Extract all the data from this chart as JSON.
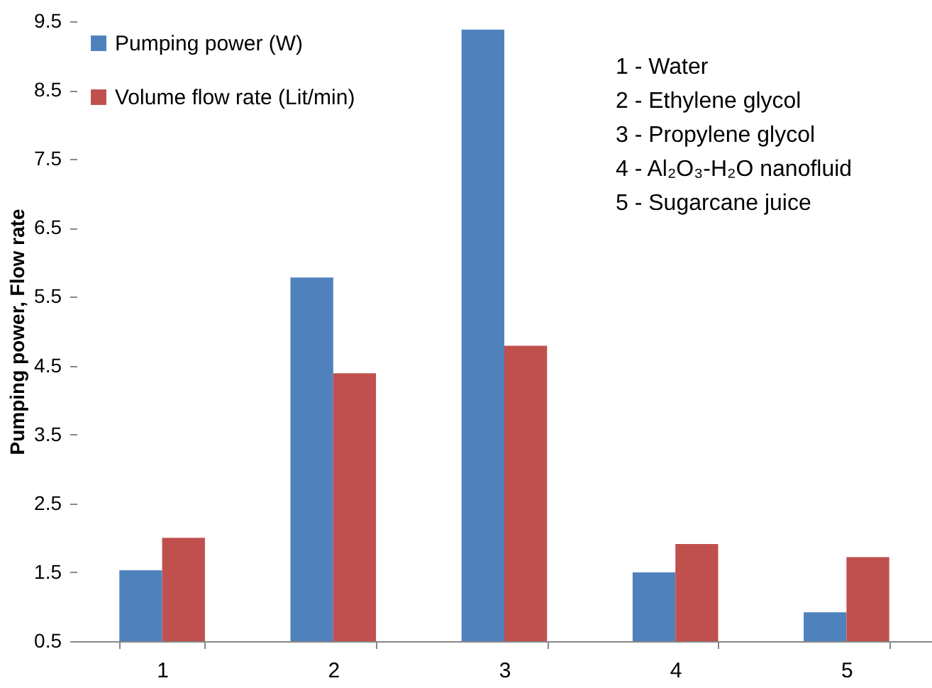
{
  "chart_data": {
    "type": "bar",
    "ylabel": "Pumping power, Flow rate",
    "categories": [
      "1",
      "2",
      "3",
      "4",
      "5"
    ],
    "series": [
      {
        "name": "Pumping power (W)",
        "color": "#4f81bd",
        "values": [
          1.53,
          5.78,
          9.38,
          1.5,
          0.92
        ]
      },
      {
        "name": "Volume flow rate (Lit/min)",
        "color": "#c0504d",
        "values": [
          2.0,
          4.39,
          4.79,
          1.91,
          1.72
        ]
      }
    ],
    "ylim": [
      0.5,
      9.5
    ],
    "yticks": [
      0.5,
      1.5,
      2.5,
      3.5,
      4.5,
      5.5,
      6.5,
      7.5,
      8.5,
      9.5
    ],
    "grid": false,
    "legend": "top left",
    "annotations": [
      "1 - Water",
      "2 - Ethylene glycol",
      "3 - Propylene glycol",
      "4 - Al₂O₃-H₂O nanofluid",
      "5 - Sugarcane juice"
    ]
  }
}
